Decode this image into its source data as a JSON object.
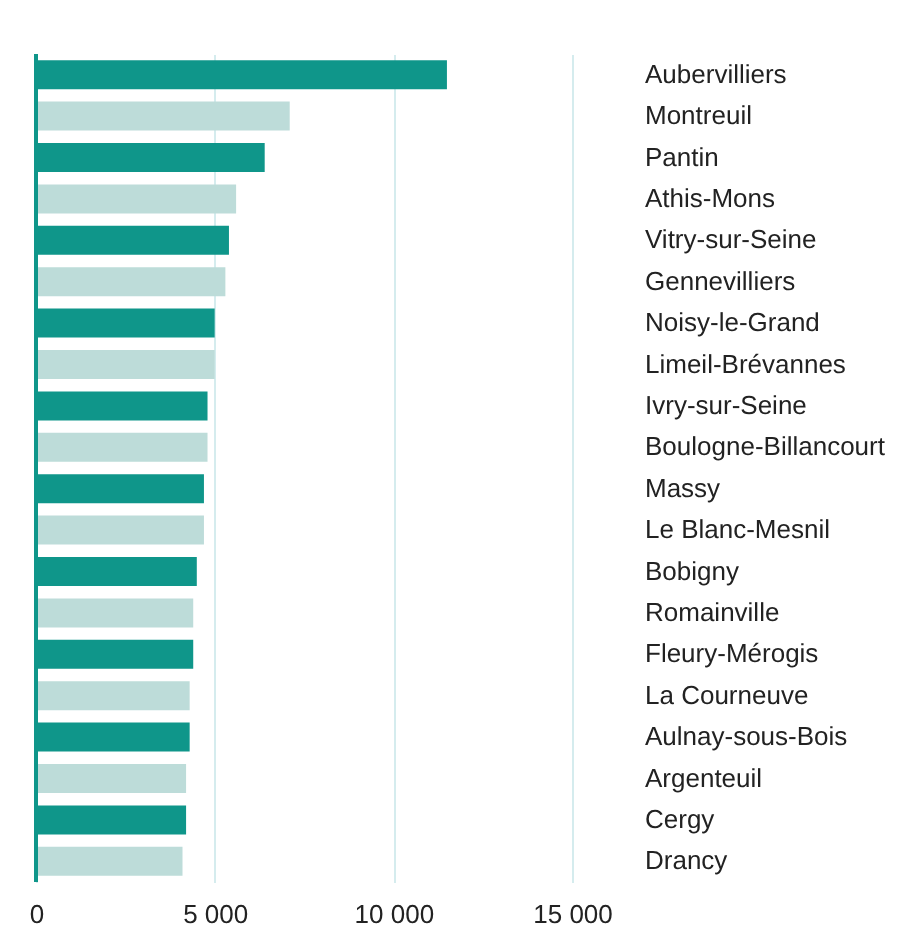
{
  "chart_data": {
    "type": "bar",
    "orientation": "horizontal",
    "categories": [
      "Aubervilliers",
      "Montreuil",
      "Pantin",
      "Athis-Mons",
      "Vitry-sur-Seine",
      "Gennevilliers",
      "Noisy-le-Grand",
      "Limeil-Brévannes",
      "Ivry-sur-Seine",
      "Boulogne-Billancourt",
      "Massy",
      "Le Blanc-Mesnil",
      "Bobigny",
      "Romainville",
      "Fleury-Mérogis",
      "La Courneuve",
      "Aulnay-sous-Bois",
      "Argenteuil",
      "Cergy",
      "Drancy"
    ],
    "values": [
      11500,
      7100,
      6400,
      5600,
      5400,
      5300,
      5000,
      5000,
      4800,
      4800,
      4700,
      4700,
      4500,
      4400,
      4400,
      4300,
      4300,
      4200,
      4200,
      4100
    ],
    "colors": [
      "#0f968a",
      "#bddcd9",
      "#0f968a",
      "#bddcd9",
      "#0f968a",
      "#bddcd9",
      "#0f968a",
      "#bddcd9",
      "#0f968a",
      "#bddcd9",
      "#0f968a",
      "#bddcd9",
      "#0f968a",
      "#bddcd9",
      "#0f968a",
      "#bddcd9",
      "#0f968a",
      "#bddcd9",
      "#0f968a",
      "#bddcd9"
    ],
    "xlim": [
      0,
      15000
    ],
    "xticks": [
      0,
      {
        "value": 5000,
        "label": "5 000"
      },
      {
        "value": 10000,
        "label": "10 000"
      },
      {
        "value": 15000,
        "label": "15 000"
      }
    ],
    "grid": "x",
    "ref_lines": [
      {
        "axis": "x",
        "value": 0,
        "color": "#0f968a"
      }
    ]
  }
}
